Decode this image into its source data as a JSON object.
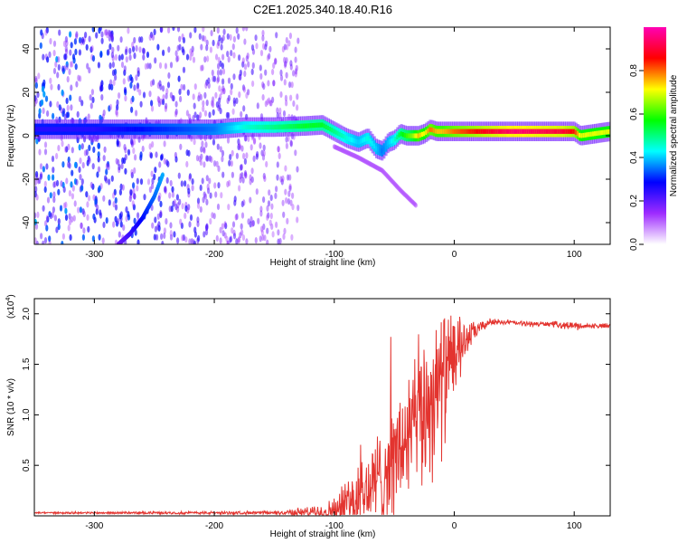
{
  "title": "C2E1.2025.340.18.40.R16",
  "chart_data": [
    {
      "type": "heatmap",
      "name": "spectrogram",
      "xlabel": "Height of straight line (km)",
      "ylabel": "Frequency (Hz)",
      "xlim": [
        -350,
        130
      ],
      "ylim": [
        -50,
        50
      ],
      "xticks": [
        -300,
        -200,
        -100,
        0,
        100
      ],
      "yticks": [
        -40,
        -20,
        0,
        20,
        40
      ],
      "grid": false,
      "colorbar": {
        "label": "Normalized spectral amplitude",
        "range": [
          0,
          1
        ],
        "ticks": [
          "0.0",
          "0.2",
          "0.4",
          "0.6",
          "0.8"
        ],
        "tick_values": [
          0,
          0.2,
          0.4,
          0.6,
          0.8
        ],
        "colors": [
          "#ffffff",
          "#9e2bff",
          "#0000ff",
          "#00ffff",
          "#00ff00",
          "#ffff00",
          "#ff0000",
          "#ff00b4"
        ]
      },
      "ridge": {
        "x": [
          -350,
          -300,
          -250,
          -200,
          -175,
          -150,
          -125,
          -110,
          -100,
          -90,
          -80,
          -72,
          -65,
          -60,
          -55,
          -50,
          -45,
          -40,
          -35,
          -30,
          -25,
          -20,
          -15,
          -10,
          0,
          50,
          90,
          100,
          105,
          130
        ],
        "y": [
          3,
          3,
          3,
          3,
          4,
          4,
          4.5,
          5,
          2,
          -1,
          -3,
          -1,
          -6,
          -7,
          -3,
          -2,
          1,
          0,
          0,
          0,
          1,
          3,
          2,
          2,
          2,
          2,
          2,
          2,
          0,
          2
        ],
        "amplitude": [
          0.25,
          0.25,
          0.3,
          0.35,
          0.45,
          0.5,
          0.55,
          0.55,
          0.5,
          0.45,
          0.4,
          0.45,
          0.4,
          0.35,
          0.4,
          0.45,
          0.55,
          0.6,
          0.65,
          0.75,
          0.7,
          0.8,
          0.75,
          0.75,
          0.8,
          0.95,
          0.9,
          0.85,
          0.7,
          0.7
        ]
      },
      "branches": [
        {
          "x": [
            -280,
            -270,
            -260,
            -250,
            -243
          ],
          "y": [
            -50,
            -45,
            -38,
            -28,
            -18
          ]
        },
        {
          "x": [
            -100,
            -80,
            -60,
            -45,
            -32
          ],
          "y": [
            -5,
            -10,
            -16,
            -25,
            -32
          ]
        }
      ],
      "noise_region_x": [
        -350,
        -130
      ]
    },
    {
      "type": "line",
      "name": "snr",
      "xlabel": "Height of straight line (km)",
      "ylabel": "SNR (10 * v/v)",
      "y_multiplier": "(x10",
      "y_multiplier_exp": "4",
      "y_multiplier_close": ")",
      "xlim": [
        -350,
        130
      ],
      "ylim": [
        0,
        2.15
      ],
      "xticks": [
        -300,
        -200,
        -100,
        0,
        100
      ],
      "yticks": [
        0.5,
        1.0,
        1.5,
        2.0
      ],
      "ytick_labels": [
        "0.5",
        "1.0",
        "1.5",
        "2.0"
      ],
      "color": "#e3342f",
      "grid": false,
      "envelope": {
        "x": [
          -350,
          -150,
          -110,
          -100,
          -90,
          -80,
          -70,
          -60,
          -50,
          -40,
          -30,
          -25,
          -20,
          -15,
          -10,
          0,
          10,
          20,
          30,
          40,
          60,
          80,
          100,
          110,
          130
        ],
        "base": [
          0.03,
          0.03,
          0.04,
          0.06,
          0.1,
          0.18,
          0.28,
          0.4,
          0.55,
          0.75,
          0.95,
          1.05,
          1.15,
          1.25,
          1.35,
          1.55,
          1.75,
          1.85,
          1.92,
          1.92,
          1.9,
          1.9,
          1.88,
          1.88,
          1.88
        ],
        "spread": [
          0.01,
          0.02,
          0.08,
          0.15,
          0.3,
          0.45,
          0.5,
          0.6,
          0.7,
          0.8,
          0.9,
          0.95,
          0.95,
          0.9,
          0.85,
          0.5,
          0.2,
          0.08,
          0.04,
          0.03,
          0.03,
          0.03,
          0.05,
          0.03,
          0.03
        ]
      }
    }
  ]
}
